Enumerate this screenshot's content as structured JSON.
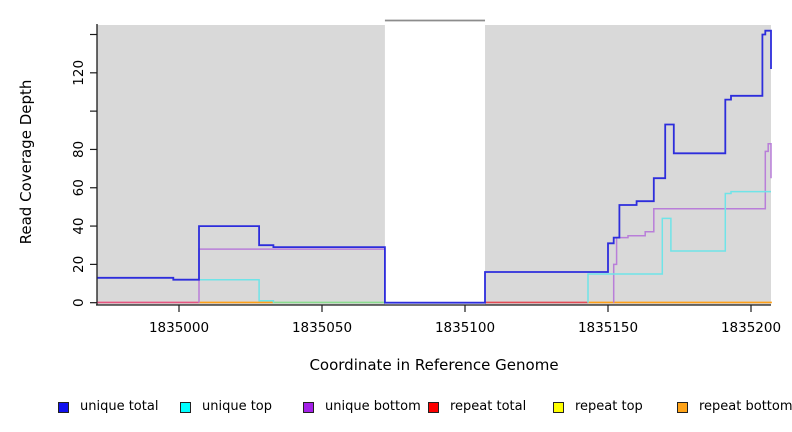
{
  "figure": {
    "background": "#ffffff",
    "plot_background": "#d9d9d9",
    "masked_band_fill": "#ffffff",
    "masked_band_border": "#8c8c8c",
    "axis_color": "#1a1a1a"
  },
  "chart_data": {
    "type": "line",
    "step": true,
    "title": "",
    "xlabel": "Coordinate in Reference Genome",
    "ylabel": "Read Coverage Depth",
    "xlim": [
      1834971.5,
      1835207.3
    ],
    "ylim": [
      0,
      146
    ],
    "x_ticks": [
      {
        "value": 1835000,
        "label": "1835000"
      },
      {
        "value": 1835050,
        "label": "1835050"
      },
      {
        "value": 1835100,
        "label": "1835100"
      },
      {
        "value": 1835150,
        "label": "1835150"
      },
      {
        "value": 1835200,
        "label": "1835200"
      }
    ],
    "y_ticks": [
      {
        "value": 0,
        "label": "0"
      },
      {
        "value": 20,
        "label": "20"
      },
      {
        "value": 40,
        "label": "40"
      },
      {
        "value": 60,
        "label": "60"
      },
      {
        "value": 80,
        "label": "80"
      },
      {
        "value": 100,
        "label": ""
      },
      {
        "value": 120,
        "label": "120"
      },
      {
        "value": 140,
        "label": ""
      }
    ],
    "masked_region": {
      "start": 1835072,
      "end": 1835107
    },
    "series": [
      {
        "name": "unique total",
        "line_color": "#2d2ddc",
        "line_width": 1.8,
        "paths": [
          [
            [
              1834971.5,
              13
            ],
            [
              1834998,
              13
            ],
            [
              1834998,
              12
            ],
            [
              1835007,
              12
            ],
            [
              1835007,
              40
            ],
            [
              1835028,
              40
            ],
            [
              1835028,
              30
            ],
            [
              1835033,
              30
            ],
            [
              1835033,
              29
            ],
            [
              1835072,
              29
            ],
            [
              1835072,
              0
            ],
            [
              1835107,
              0
            ],
            [
              1835107,
              16
            ],
            [
              1835150,
              16
            ],
            [
              1835150,
              31
            ],
            [
              1835152,
              31
            ],
            [
              1835152,
              34
            ],
            [
              1835154,
              34
            ],
            [
              1835154,
              51
            ],
            [
              1835160,
              51
            ],
            [
              1835160,
              53
            ],
            [
              1835166,
              53
            ],
            [
              1835166,
              65
            ],
            [
              1835170,
              65
            ],
            [
              1835170,
              93
            ],
            [
              1835173,
              93
            ],
            [
              1835173,
              78
            ],
            [
              1835191,
              78
            ],
            [
              1835191,
              106
            ],
            [
              1835193,
              106
            ],
            [
              1835193,
              108
            ],
            [
              1835204,
              108
            ],
            [
              1835204,
              140
            ],
            [
              1835205,
              140
            ],
            [
              1835205,
              142
            ],
            [
              1835207,
              142
            ],
            [
              1835207,
              122
            ]
          ]
        ]
      },
      {
        "name": "unique top",
        "line_color": "#6fe4e8",
        "line_width": 1.5,
        "paths": [
          [
            [
              1834971.5,
              13
            ],
            [
              1834998,
              13
            ],
            [
              1834998,
              12
            ],
            [
              1835028,
              12
            ],
            [
              1835028,
              1
            ],
            [
              1835033,
              1
            ],
            [
              1835033,
              0
            ]
          ],
          [
            [
              1835143,
              0
            ],
            [
              1835143,
              15
            ],
            [
              1835169,
              15
            ],
            [
              1835169,
              44
            ],
            [
              1835172,
              44
            ],
            [
              1835172,
              27
            ],
            [
              1835191,
              27
            ],
            [
              1835191,
              57
            ],
            [
              1835193,
              57
            ],
            [
              1835193,
              58
            ],
            [
              1835207,
              58
            ]
          ]
        ]
      },
      {
        "name": "unique bottom",
        "line_color": "#b97ed9",
        "line_width": 1.5,
        "paths": [
          [
            [
              1835007,
              0
            ],
            [
              1835007,
              28
            ],
            [
              1835072,
              28
            ],
            [
              1835072,
              0
            ],
            [
              1835107,
              0
            ]
          ],
          [
            [
              1835152,
              0
            ],
            [
              1835152,
              20
            ],
            [
              1835153,
              20
            ],
            [
              1835153,
              34
            ],
            [
              1835157,
              34
            ],
            [
              1835157,
              35
            ],
            [
              1835163,
              35
            ],
            [
              1835163,
              37
            ],
            [
              1835166,
              37
            ],
            [
              1835166,
              49
            ],
            [
              1835205,
              49
            ],
            [
              1835205,
              79
            ],
            [
              1835206,
              79
            ],
            [
              1835206,
              83
            ],
            [
              1835207,
              83
            ],
            [
              1835207,
              65
            ]
          ]
        ]
      },
      {
        "name": "repeat total",
        "line_color": "#e34b55",
        "line_width": 1.5,
        "paths": []
      },
      {
        "name": "repeat top",
        "line_color": "#f2ef30",
        "line_width": 1.5,
        "paths": []
      },
      {
        "name": "repeat bottom",
        "line_color": "#ffa018",
        "line_width": 1.5,
        "paths": []
      }
    ],
    "baseline_segments": [
      {
        "from": 1834971.5,
        "to": 1835007,
        "value": 0,
        "color": "#e65580",
        "series": "repeat total"
      },
      {
        "from": 1835007,
        "to": 1835033,
        "value": 0,
        "color": "#ffa018",
        "series": "repeat bottom"
      },
      {
        "from": 1835033,
        "to": 1835072,
        "value": 0,
        "color": "#8adc8e",
        "series": "unique/repeat top overlap"
      },
      {
        "from": 1835107,
        "to": 1835143,
        "value": 0,
        "color": "#e34b55",
        "series": "repeat total"
      },
      {
        "from": 1835143,
        "to": 1835207.3,
        "value": 0,
        "color": "#ffa018",
        "series": "repeat bottom"
      }
    ]
  },
  "legend": {
    "items": [
      {
        "label": "unique total",
        "fill": "#1010ee"
      },
      {
        "label": "unique top",
        "fill": "#00ffff"
      },
      {
        "label": "unique bottom",
        "fill": "#a421e8"
      },
      {
        "label": "repeat total",
        "fill": "#fc0000"
      },
      {
        "label": "repeat top",
        "fill": "#ffff00"
      },
      {
        "label": "repeat bottom",
        "fill": "#ffa318"
      }
    ]
  }
}
